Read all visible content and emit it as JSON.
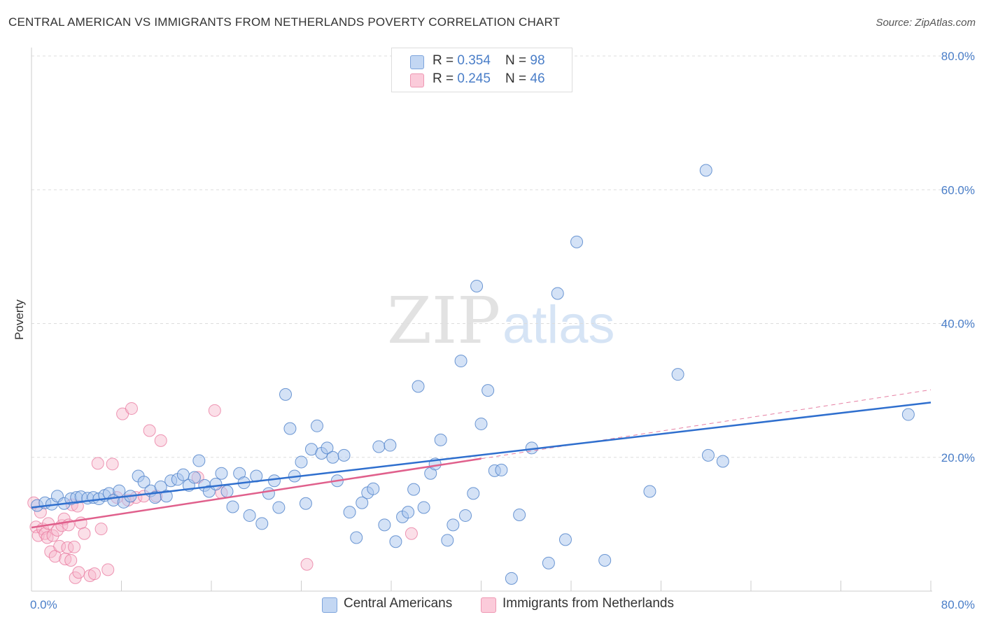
{
  "title": "CENTRAL AMERICAN VS IMMIGRANTS FROM NETHERLANDS POVERTY CORRELATION CHART",
  "source": "Source: ZipAtlas.com",
  "watermark": {
    "zip": "ZIP",
    "atlas": "atlas"
  },
  "legend": {
    "series1": {
      "r_label": "R = ",
      "r_value": "0.354",
      "n_label": "N = ",
      "n_value": "98"
    },
    "series2": {
      "r_label": "R = ",
      "r_value": "0.245",
      "n_label": "N = ",
      "n_value": "46"
    }
  },
  "bottom_legend": {
    "series1": "Central Americans",
    "series2": "Immigrants from Netherlands"
  },
  "colors": {
    "blue": "#4a7ec8",
    "blue_fill": "#a9c6ee",
    "blue_line": "#2f6fce",
    "pink": "#e8769c",
    "pink_fill": "#f6b8cc",
    "pink_line": "#e0608c",
    "grid": "#dddddd"
  },
  "chart_data": {
    "type": "scatter",
    "title": "CENTRAL AMERICAN VS IMMIGRANTS FROM NETHERLANDS POVERTY CORRELATION CHART",
    "xlabel": "",
    "ylabel": "Poverty",
    "xlim": [
      0,
      80
    ],
    "ylim": [
      0,
      80
    ],
    "x_tick_labels": [
      "0.0%",
      "80.0%"
    ],
    "y_ticks": [
      20,
      40,
      60,
      80
    ],
    "y_tick_labels": [
      "20.0%",
      "40.0%",
      "60.0%",
      "80.0%"
    ],
    "grid": true,
    "legend_position": "top-center",
    "series": [
      {
        "name": "Central Americans",
        "r": 0.354,
        "n": 98,
        "trend": {
          "x": [
            0,
            80
          ],
          "y": [
            12.5,
            28.2
          ]
        },
        "points": [
          [
            0.5,
            12.8
          ],
          [
            1.2,
            13.2
          ],
          [
            1.8,
            13.0
          ],
          [
            2.3,
            14.2
          ],
          [
            2.9,
            13.1
          ],
          [
            3.5,
            13.8
          ],
          [
            4.0,
            14.0
          ],
          [
            4.4,
            14.1
          ],
          [
            5.0,
            13.9
          ],
          [
            5.5,
            14.0
          ],
          [
            6.0,
            13.8
          ],
          [
            6.5,
            14.3
          ],
          [
            6.9,
            14.6
          ],
          [
            7.3,
            13.6
          ],
          [
            7.8,
            15.0
          ],
          [
            8.2,
            13.3
          ],
          [
            8.8,
            14.2
          ],
          [
            9.5,
            17.2
          ],
          [
            10.0,
            16.3
          ],
          [
            10.6,
            15.0
          ],
          [
            11.0,
            14.0
          ],
          [
            11.5,
            15.6
          ],
          [
            12.0,
            14.2
          ],
          [
            12.4,
            16.5
          ],
          [
            13.0,
            16.7
          ],
          [
            13.5,
            17.4
          ],
          [
            14.0,
            15.8
          ],
          [
            14.5,
            17.0
          ],
          [
            14.9,
            19.5
          ],
          [
            15.4,
            15.8
          ],
          [
            15.8,
            14.9
          ],
          [
            16.4,
            16.0
          ],
          [
            16.9,
            17.6
          ],
          [
            17.4,
            14.9
          ],
          [
            17.9,
            12.6
          ],
          [
            18.5,
            17.6
          ],
          [
            18.9,
            16.2
          ],
          [
            19.4,
            11.3
          ],
          [
            20.0,
            17.2
          ],
          [
            20.5,
            10.1
          ],
          [
            21.1,
            14.6
          ],
          [
            21.6,
            16.5
          ],
          [
            22.0,
            12.5
          ],
          [
            22.6,
            29.4
          ],
          [
            23.0,
            24.3
          ],
          [
            23.4,
            17.2
          ],
          [
            24.0,
            19.3
          ],
          [
            24.4,
            13.1
          ],
          [
            24.9,
            21.2
          ],
          [
            25.4,
            24.7
          ],
          [
            25.8,
            20.6
          ],
          [
            26.3,
            21.4
          ],
          [
            26.8,
            20.0
          ],
          [
            27.2,
            16.5
          ],
          [
            27.8,
            20.3
          ],
          [
            28.3,
            11.8
          ],
          [
            28.9,
            8.0
          ],
          [
            29.4,
            13.2
          ],
          [
            29.9,
            14.7
          ],
          [
            30.4,
            15.3
          ],
          [
            30.9,
            21.6
          ],
          [
            31.4,
            9.9
          ],
          [
            31.9,
            21.8
          ],
          [
            32.4,
            7.4
          ],
          [
            33.0,
            11.1
          ],
          [
            33.5,
            11.8
          ],
          [
            34.0,
            15.2
          ],
          [
            34.4,
            30.6
          ],
          [
            34.9,
            12.5
          ],
          [
            35.5,
            17.6
          ],
          [
            35.9,
            19.0
          ],
          [
            36.4,
            22.6
          ],
          [
            37.0,
            7.6
          ],
          [
            37.5,
            9.9
          ],
          [
            38.2,
            34.4
          ],
          [
            38.6,
            11.3
          ],
          [
            39.3,
            14.6
          ],
          [
            39.6,
            45.6
          ],
          [
            40.0,
            25.0
          ],
          [
            40.6,
            30.0
          ],
          [
            41.2,
            18.0
          ],
          [
            41.8,
            18.1
          ],
          [
            42.7,
            1.9
          ],
          [
            43.4,
            11.4
          ],
          [
            44.5,
            21.4
          ],
          [
            46.0,
            4.2
          ],
          [
            46.8,
            44.5
          ],
          [
            47.5,
            7.7
          ],
          [
            48.5,
            52.2
          ],
          [
            51.0,
            4.6
          ],
          [
            55.0,
            14.9
          ],
          [
            57.5,
            32.4
          ],
          [
            60.0,
            62.9
          ],
          [
            60.2,
            20.3
          ],
          [
            61.5,
            19.4
          ],
          [
            78.0,
            26.4
          ]
        ]
      },
      {
        "name": "Immigrants from Netherlands",
        "r": 0.245,
        "n": 46,
        "trend": {
          "x": [
            0,
            40
          ],
          "y": [
            9.5,
            19.8
          ]
        },
        "trend_extension": {
          "x": [
            40,
            80
          ],
          "y": [
            19.8,
            30.1
          ]
        },
        "points": [
          [
            0.2,
            13.2
          ],
          [
            0.4,
            9.6
          ],
          [
            0.6,
            8.3
          ],
          [
            0.8,
            11.8
          ],
          [
            1.0,
            9.3
          ],
          [
            1.2,
            8.6
          ],
          [
            1.4,
            8.0
          ],
          [
            1.5,
            10.1
          ],
          [
            1.7,
            5.9
          ],
          [
            1.9,
            8.3
          ],
          [
            2.1,
            5.2
          ],
          [
            2.3,
            9.1
          ],
          [
            2.5,
            6.7
          ],
          [
            2.7,
            9.8
          ],
          [
            2.9,
            10.8
          ],
          [
            3.0,
            4.8
          ],
          [
            3.2,
            6.5
          ],
          [
            3.3,
            9.9
          ],
          [
            3.5,
            4.6
          ],
          [
            3.6,
            12.9
          ],
          [
            3.8,
            6.6
          ],
          [
            3.9,
            2.0
          ],
          [
            4.1,
            12.7
          ],
          [
            4.2,
            2.8
          ],
          [
            4.4,
            10.2
          ],
          [
            4.7,
            8.6
          ],
          [
            5.2,
            2.3
          ],
          [
            5.6,
            2.6
          ],
          [
            5.9,
            19.1
          ],
          [
            6.2,
            9.3
          ],
          [
            6.8,
            3.2
          ],
          [
            7.2,
            19.0
          ],
          [
            7.6,
            14.0
          ],
          [
            8.1,
            26.5
          ],
          [
            8.6,
            13.6
          ],
          [
            8.9,
            27.3
          ],
          [
            9.3,
            14.0
          ],
          [
            10.0,
            14.2
          ],
          [
            10.5,
            24.0
          ],
          [
            11.1,
            14.2
          ],
          [
            11.5,
            22.5
          ],
          [
            14.8,
            17.0
          ],
          [
            16.3,
            27.0
          ],
          [
            16.9,
            14.7
          ],
          [
            24.5,
            4.0
          ],
          [
            33.8,
            8.6
          ]
        ]
      }
    ]
  }
}
